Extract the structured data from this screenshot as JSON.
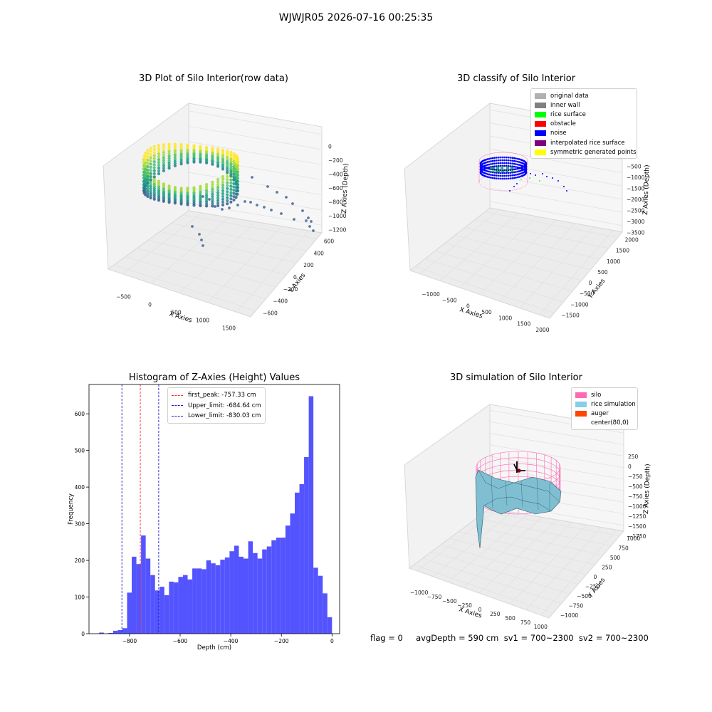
{
  "figure": {
    "suptitle": "WJWJR05 2026-07-16 00:25:35",
    "status_line": "flag = 0     avgDepth = 590 cm  sv1 = 700~2300  sv2 = 700~2300"
  },
  "chart_data": [
    {
      "type": "scatter",
      "title": "3D Plot of Silo Interior(row data)",
      "xlabel": "X Axies",
      "ylabel": "Y Axies",
      "zlabel": "Z Axies (Depth)",
      "x_ticks": [
        "−500",
        "0",
        "500",
        "1000",
        "1500"
      ],
      "y_ticks": [
        "−600",
        "−400",
        "−200",
        "0",
        "200",
        "400",
        "600"
      ],
      "z_ticks": [
        "0",
        "−200",
        "−400",
        "−600",
        "−800",
        "−1000",
        "−1200"
      ],
      "colormap": "viridis",
      "description_colors": [
        "#fde725",
        "#a0da39",
        "#4ac16d",
        "#1fa187",
        "#277f8e",
        "#365c8d",
        "#46327e"
      ]
    },
    {
      "type": "scatter",
      "title": "3D classify of Silo Interior",
      "xlabel": "X Axies",
      "ylabel": "Y Axies",
      "zlabel": "Z Axies (Depth)",
      "x_ticks": [
        "−1000",
        "−500",
        "0",
        "500",
        "1000",
        "1500",
        "2000"
      ],
      "y_ticks": [
        "−1500",
        "−1000",
        "−500",
        "0",
        "500",
        "1000",
        "1500",
        "2000"
      ],
      "z_ticks": [
        "0",
        "−500",
        "−1000",
        "−1500",
        "−2000",
        "−2500",
        "−3000",
        "−3500"
      ],
      "legend": [
        {
          "label": "original data",
          "color": "#b0b0b0"
        },
        {
          "label": "inner wall",
          "color": "#808080"
        },
        {
          "label": "rice surface",
          "color": "#00ff00"
        },
        {
          "label": "obstacle",
          "color": "#ff0000"
        },
        {
          "label": "noise",
          "color": "#0000ff"
        },
        {
          "label": "interpolated rice surface",
          "color": "#800080"
        },
        {
          "label": "symmetric generated points",
          "color": "#ffff00"
        }
      ]
    },
    {
      "type": "bar",
      "title": "Histogram of Z-Axies (Height) Values",
      "xlabel": "Depth (cm)",
      "ylabel": "Frequency",
      "xlim": [
        -960,
        30
      ],
      "ylim": [
        0,
        680
      ],
      "x_ticks": [
        -800,
        -600,
        -400,
        -200,
        0
      ],
      "y_ticks": [
        0,
        100,
        200,
        300,
        400,
        500,
        600
      ],
      "bar_color": "#4b4bff",
      "bin_start": -920,
      "bin_width": 18.4,
      "values": [
        3,
        0,
        2,
        8,
        10,
        15,
        112,
        210,
        190,
        268,
        205,
        160,
        118,
        128,
        105,
        142,
        140,
        155,
        160,
        148,
        178,
        178,
        176,
        200,
        192,
        187,
        202,
        208,
        225,
        240,
        210,
        205,
        252,
        220,
        205,
        230,
        238,
        255,
        262,
        262,
        295,
        328,
        385,
        408,
        482,
        648,
        180,
        158,
        110,
        45
      ],
      "lines": [
        {
          "label": "first_peak: -757.33 cm",
          "x": -757.33,
          "color": "#ff2a2a"
        },
        {
          "label": "Upper_limit: -684.64 cm",
          "x": -684.64,
          "color": "#1a1ad0"
        },
        {
          "label": "Lower_limit: -830.03 cm",
          "x": -830.03,
          "color": "#1a1ad0"
        }
      ]
    },
    {
      "type": "area",
      "title": "3D simulation of Silo Interior",
      "xlabel": "X Axies",
      "ylabel": "Y Axies",
      "zlabel": "Z Axies (Depth)",
      "x_ticks": [
        "−1000",
        "−750",
        "−500",
        "−250",
        "0",
        "250",
        "500",
        "750",
        "1000"
      ],
      "y_ticks": [
        "−1000",
        "−750",
        "−500",
        "−250",
        "0",
        "250",
        "500",
        "750",
        "1000"
      ],
      "z_ticks": [
        "250",
        "0",
        "−250",
        "−500",
        "−750",
        "−1000",
        "−1250",
        "−1500",
        "−1750"
      ],
      "legend": [
        {
          "label": "silo",
          "color": "#ff69b4"
        },
        {
          "label": "rice simulation",
          "color": "#87ceeb"
        },
        {
          "label": "auger",
          "color": "#ff4500"
        },
        {
          "label": "center(80,0)",
          "color": "#ffffff"
        }
      ]
    }
  ]
}
